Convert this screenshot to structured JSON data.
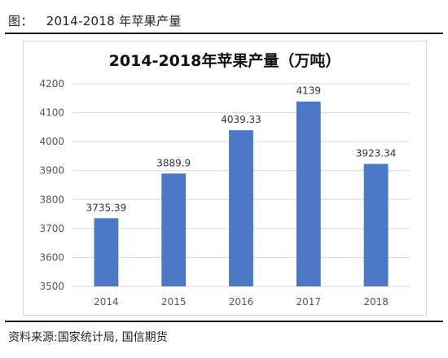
{
  "caption": {
    "label": "图：",
    "text": "2014-2018 年苹果产量"
  },
  "source": "资料来源:国家统计局, 国信期货",
  "colors": {
    "bar": "#4a77c6",
    "grid": "#d9d9d9",
    "axis_text": "#555555",
    "title": "#111111"
  },
  "chart_data": {
    "type": "bar",
    "title": "2014-2018年苹果产量（万吨）",
    "categories": [
      "2014",
      "2015",
      "2016",
      "2017",
      "2018"
    ],
    "values": [
      3735.39,
      3889.9,
      4039.33,
      4139,
      3923.34
    ],
    "value_labels": [
      "3735.39",
      "3889.9",
      "4039.33",
      "4139",
      "3923.34"
    ],
    "ylim": [
      3500,
      4200
    ],
    "yticks": [
      3500,
      3600,
      3700,
      3800,
      3900,
      4000,
      4100,
      4200
    ],
    "grid": true,
    "legend": false
  }
}
